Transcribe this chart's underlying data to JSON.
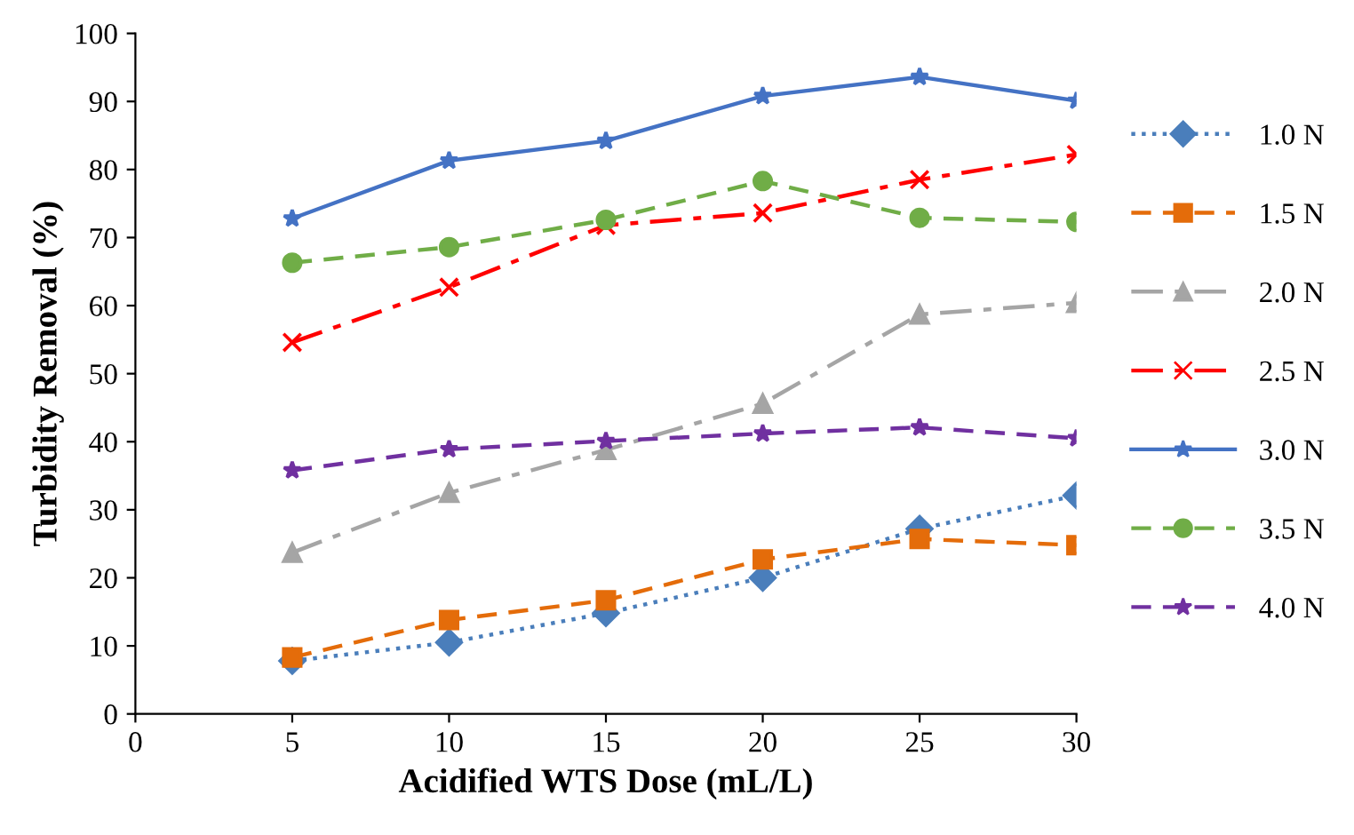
{
  "chart_data": {
    "type": "line",
    "xlabel": "Acidified WTS Dose (mL/L)",
    "ylabel": "Turbidity Removal (%)",
    "x": [
      5,
      10,
      15,
      20,
      25,
      30
    ],
    "series": [
      {
        "name": "1.0 N",
        "color": "#4a7ebb",
        "marker": "diamond",
        "line_style": "dotted",
        "values": [
          7.8,
          10.5,
          14.8,
          20.0,
          27.2,
          32.1
        ]
      },
      {
        "name": "1.5 N",
        "color": "#e46c0a",
        "marker": "square",
        "line_style": "dashed",
        "values": [
          8.3,
          13.8,
          16.7,
          22.7,
          25.7,
          24.8
        ]
      },
      {
        "name": "2.0 N",
        "color": "#a5a5a5",
        "marker": "triangle",
        "line_style": "dashdot",
        "values": [
          23.7,
          32.5,
          38.8,
          45.6,
          58.7,
          60.4
        ]
      },
      {
        "name": "2.5 N",
        "color": "#ff0000",
        "marker": "cross",
        "line_style": "dashdot",
        "values": [
          54.6,
          62.7,
          71.8,
          73.6,
          78.5,
          82.2
        ]
      },
      {
        "name": "3.0 N",
        "color": "#4472c4",
        "marker": "star",
        "line_style": "solid",
        "values": [
          72.8,
          81.3,
          84.2,
          90.8,
          93.6,
          90.1
        ]
      },
      {
        "name": "3.5 N",
        "color": "#70ad47",
        "marker": "circle",
        "line_style": "dashed",
        "values": [
          66.3,
          68.6,
          72.6,
          78.3,
          72.9,
          72.3
        ]
      },
      {
        "name": "4.0 N",
        "color": "#7030a0",
        "marker": "star",
        "line_style": "dashed",
        "values": [
          35.8,
          38.9,
          40.1,
          41.2,
          42.1,
          40.5
        ]
      }
    ],
    "xlim": [
      0,
      30
    ],
    "xticks": [
      0,
      5,
      10,
      15,
      20,
      25,
      30
    ],
    "ylim": [
      0,
      100
    ],
    "yticks": [
      0,
      10,
      20,
      30,
      40,
      50,
      60,
      70,
      80,
      90,
      100
    ],
    "grid": false,
    "legend": "right"
  }
}
